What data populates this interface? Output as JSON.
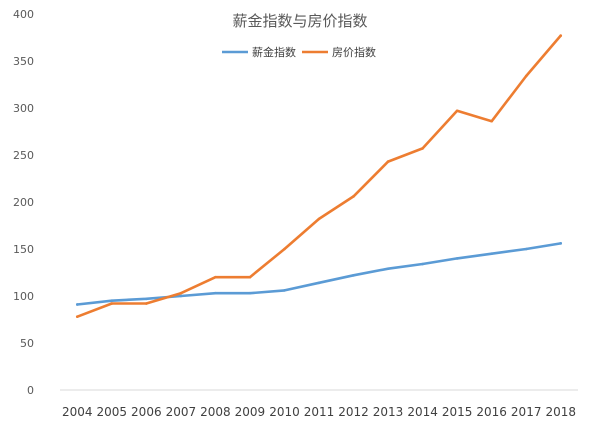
{
  "chart_data": {
    "type": "line",
    "title": "薪金指数与房价指数",
    "xlabel": "",
    "ylabel": "",
    "x": [
      "2004",
      "2005",
      "2006",
      "2007",
      "2008",
      "2009",
      "2010",
      "2011",
      "2012",
      "2013",
      "2014",
      "2015",
      "2016",
      "2017",
      "2018"
    ],
    "ylim": [
      0,
      400
    ],
    "yticks": [
      0,
      50,
      100,
      150,
      200,
      250,
      300,
      350,
      400
    ],
    "grid": false,
    "legend_position": "top-center",
    "series": [
      {
        "name": "薪金指数",
        "color": "#5b9bd5",
        "values": [
          91,
          95,
          97,
          100,
          103,
          103,
          106,
          114,
          122,
          129,
          134,
          140,
          145,
          150,
          156
        ]
      },
      {
        "name": "房价指数",
        "color": "#ed7d31",
        "values": [
          78,
          92,
          92,
          103,
          120,
          120,
          150,
          182,
          206,
          243,
          257,
          297,
          286,
          334,
          377
        ]
      }
    ]
  }
}
